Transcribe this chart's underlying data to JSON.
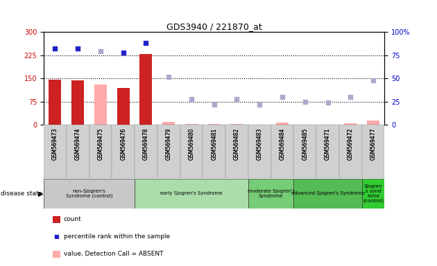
{
  "title": "GDS3940 / 221870_at",
  "samples": [
    "GSM569473",
    "GSM569474",
    "GSM569475",
    "GSM569476",
    "GSM569478",
    "GSM569479",
    "GSM569480",
    "GSM569481",
    "GSM569482",
    "GSM569483",
    "GSM569484",
    "GSM569485",
    "GSM569471",
    "GSM569472",
    "GSM569477"
  ],
  "count_present": [
    147,
    145,
    null,
    120,
    228,
    null,
    null,
    null,
    null,
    null,
    null,
    null,
    null,
    null,
    null
  ],
  "count_absent": [
    null,
    null,
    130,
    null,
    null,
    10,
    3,
    3,
    3,
    null,
    8,
    null,
    null,
    5,
    15
  ],
  "rank_present": [
    82,
    82,
    null,
    78,
    88,
    null,
    null,
    null,
    null,
    null,
    null,
    null,
    null,
    null,
    null
  ],
  "rank_absent": [
    null,
    null,
    79,
    null,
    null,
    52,
    28,
    22,
    28,
    22,
    30,
    25,
    24,
    30,
    48
  ],
  "yticks_left": [
    0,
    75,
    150,
    225,
    300
  ],
  "yticks_right": [
    0,
    25,
    50,
    75,
    100
  ],
  "ylim_left": [
    0,
    300
  ],
  "ylim_right": [
    0,
    100
  ],
  "disease_groups": [
    {
      "label": "non-Sjogren's\nSyndrome (control)",
      "start": 0,
      "end": 4,
      "color": "#c8c8c8"
    },
    {
      "label": "early Sjogren's Syndrome",
      "start": 4,
      "end": 9,
      "color": "#aaddaa"
    },
    {
      "label": "moderate Sjogren's\nSyndrome",
      "start": 9,
      "end": 11,
      "color": "#77cc77"
    },
    {
      "label": "advanced Sjogren's Syndrome",
      "start": 11,
      "end": 14,
      "color": "#55bb55"
    },
    {
      "label": "Sjogren\ns synd\nrome\n(control)",
      "start": 14,
      "end": 15,
      "color": "#33cc33"
    }
  ],
  "bar_present_color": "#cc2222",
  "bar_absent_color": "#ffaaaa",
  "dot_present_color": "#2222cc",
  "dot_absent_color": "#aaaacc",
  "bg_color": "#ffffff",
  "left_label_color": "#cc0000",
  "right_label_color": "#0000cc",
  "bar_width": 0.55,
  "dot_size": 20
}
